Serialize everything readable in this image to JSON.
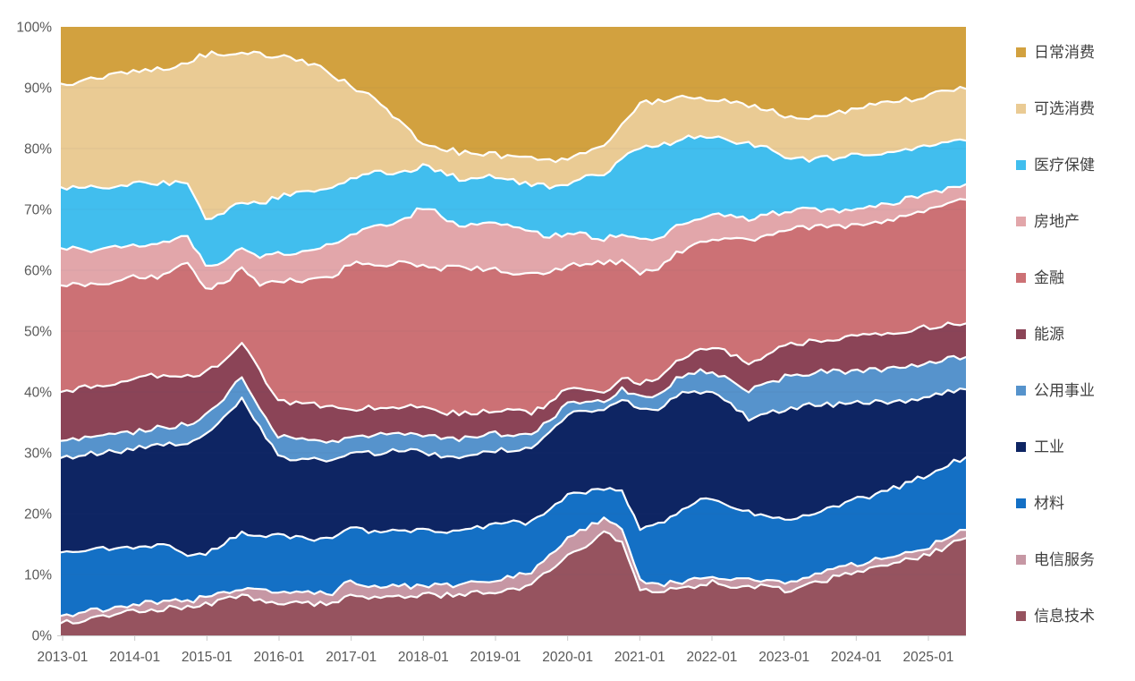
{
  "chart_data": {
    "type": "area",
    "stacking": "percent_100_stacked",
    "title": "",
    "xlabel": "",
    "ylabel": "",
    "grid": "faint horizontal gridlines at 10% steps",
    "axis_label_color": "#595959",
    "boundary_stroke_color": "#ffffff",
    "x_axis": {
      "tick_labels": [
        "2013-01",
        "2014-01",
        "2015-01",
        "2016-01",
        "2017-01",
        "2018-01",
        "2019-01",
        "2020-01",
        "2021-01",
        "2022-01",
        "2023-01",
        "2024-01",
        "2025-01"
      ],
      "frequency": "monthly (values sampled quarterly below)"
    },
    "y_axis": {
      "tick_labels": [
        "0%",
        "10%",
        "20%",
        "30%",
        "40%",
        "50%",
        "60%",
        "70%",
        "80%",
        "90%",
        "100%"
      ],
      "min": 0,
      "max": 100
    },
    "legend": {
      "position": "right",
      "order_top_to_bottom": [
        "日常消费",
        "可选消费",
        "医疗保健",
        "房地产",
        "金融",
        "能源",
        "公用事业",
        "工业",
        "材料",
        "电信服务",
        "信息技术"
      ]
    },
    "x": [
      "2013-01",
      "2013-04",
      "2013-07",
      "2013-10",
      "2014-01",
      "2014-04",
      "2014-07",
      "2014-10",
      "2015-01",
      "2015-04",
      "2015-07",
      "2015-10",
      "2016-01",
      "2016-04",
      "2016-07",
      "2016-10",
      "2017-01",
      "2017-04",
      "2017-07",
      "2017-10",
      "2018-01",
      "2018-04",
      "2018-07",
      "2018-10",
      "2019-01",
      "2019-04",
      "2019-07",
      "2019-10",
      "2020-01",
      "2020-04",
      "2020-07",
      "2020-10",
      "2021-01",
      "2021-04",
      "2021-07",
      "2021-10",
      "2022-01",
      "2022-04",
      "2022-07",
      "2022-10",
      "2023-01",
      "2023-04",
      "2023-07",
      "2023-10",
      "2024-01",
      "2024-04",
      "2024-07",
      "2024-10",
      "2025-01",
      "2025-04",
      "2025-07"
    ],
    "series_bottom_to_top": [
      {
        "id": "info-tech",
        "name": "信息技术",
        "color": "#96535F",
        "values": [
          2.0,
          2.4,
          2.9,
          3.3,
          4.0,
          4.2,
          4.4,
          4.6,
          5.1,
          5.6,
          6.3,
          5.8,
          5.5,
          5.3,
          5.2,
          5.1,
          6.9,
          6.2,
          5.8,
          6.2,
          6.6,
          6.4,
          6.7,
          6.9,
          7.1,
          7.6,
          8.3,
          10.5,
          13.7,
          15.0,
          17.4,
          15.5,
          7.6,
          7.0,
          7.4,
          8.2,
          8.8,
          8.2,
          8.1,
          7.5,
          7.2,
          7.8,
          8.6,
          9.4,
          10.3,
          10.8,
          11.5,
          12.4,
          13.2,
          14.8,
          16.5
        ]
      },
      {
        "id": "telecom",
        "name": "电信服务",
        "color": "#C697A4",
        "values": [
          1.2,
          1.3,
          1.3,
          1.2,
          1.1,
          1.1,
          1.1,
          1.1,
          1.1,
          1.2,
          1.3,
          1.5,
          1.7,
          1.8,
          1.9,
          1.9,
          1.9,
          1.9,
          1.8,
          1.6,
          1.5,
          1.5,
          1.5,
          1.6,
          1.8,
          1.9,
          2.2,
          2.4,
          2.6,
          2.6,
          2.2,
          1.8,
          1.3,
          1.2,
          1.2,
          1.2,
          1.2,
          1.2,
          1.2,
          1.2,
          1.2,
          1.2,
          1.2,
          1.2,
          1.2,
          1.2,
          1.3,
          1.3,
          1.3,
          1.4,
          1.4
        ]
      },
      {
        "id": "materials",
        "name": "材料",
        "color": "#1470C5",
        "values": [
          10.4,
          10.2,
          10.0,
          9.8,
          9.6,
          9.4,
          9.0,
          7.8,
          7.0,
          7.8,
          9.0,
          9.2,
          9.4,
          9.2,
          9.0,
          8.8,
          8.5,
          8.6,
          8.7,
          8.8,
          8.8,
          8.5,
          8.2,
          8.9,
          9.6,
          8.8,
          8.0,
          7.5,
          7.2,
          6.0,
          4.5,
          6.5,
          8.0,
          9.5,
          11.0,
          12.5,
          13.0,
          12.0,
          10.3,
          10.0,
          10.3,
          10.1,
          10.0,
          10.1,
          10.3,
          10.5,
          10.8,
          11.2,
          11.8,
          12.1,
          12.3
        ]
      },
      {
        "id": "industrials",
        "name": "工业",
        "color": "#0E2563",
        "values": [
          15.5,
          15.6,
          15.8,
          16.0,
          16.0,
          16.2,
          16.5,
          19.0,
          19.5,
          20.5,
          21.5,
          17.5,
          13.5,
          13.2,
          13.0,
          12.6,
          12.1,
          12.4,
          12.6,
          12.8,
          12.8,
          12.5,
          12.2,
          12.0,
          11.8,
          12.0,
          12.4,
          12.6,
          12.9,
          13.5,
          13.0,
          15.5,
          19.0,
          18.0,
          19.5,
          18.5,
          17.5,
          16.5,
          15.1,
          16.0,
          17.6,
          17.2,
          16.8,
          16.0,
          15.4,
          14.8,
          14.0,
          13.2,
          12.5,
          12.0,
          11.5
        ]
      },
      {
        "id": "utilities",
        "name": "公用事业",
        "color": "#5693CC",
        "values": [
          2.8,
          2.8,
          2.8,
          2.8,
          2.9,
          2.9,
          3.0,
          3.0,
          3.1,
          3.2,
          3.4,
          3.4,
          3.4,
          3.3,
          3.2,
          3.1,
          2.9,
          2.9,
          2.8,
          2.8,
          2.9,
          2.8,
          2.7,
          2.6,
          2.6,
          2.4,
          2.2,
          2.0,
          1.8,
          1.6,
          1.5,
          1.8,
          2.2,
          2.6,
          2.8,
          3.2,
          3.6,
          4.0,
          4.5,
          4.8,
          5.1,
          5.1,
          5.2,
          5.2,
          5.1,
          5.2,
          5.3,
          5.4,
          5.4,
          5.5,
          5.5
        ]
      },
      {
        "id": "energy",
        "name": "能源",
        "color": "#8B4457",
        "values": [
          8.0,
          8.2,
          8.4,
          8.5,
          8.6,
          8.6,
          8.4,
          7.8,
          7.0,
          6.2,
          5.5,
          5.8,
          6.1,
          6.0,
          5.9,
          5.7,
          4.4,
          4.3,
          4.2,
          4.3,
          4.4,
          4.3,
          4.2,
          4.1,
          4.0,
          3.7,
          3.4,
          2.9,
          2.5,
          1.7,
          1.5,
          1.8,
          2.2,
          2.5,
          2.8,
          3.4,
          3.8,
          4.2,
          4.5,
          4.7,
          5.1,
          5.0,
          4.9,
          5.2,
          5.9,
          5.8,
          5.8,
          5.9,
          5.9,
          5.8,
          5.7
        ]
      },
      {
        "id": "financials",
        "name": "金融",
        "color": "#CC7175",
        "values": [
          17.5,
          17.0,
          16.5,
          16.8,
          16.8,
          16.0,
          16.5,
          19.5,
          13.5,
          12.5,
          11.5,
          14.5,
          19.9,
          20.5,
          21.0,
          21.5,
          23.5,
          23.0,
          22.5,
          22.8,
          22.8,
          23.0,
          23.5,
          23.2,
          23.1,
          22.5,
          22.8,
          21.5,
          20.1,
          21.5,
          21.6,
          19.5,
          17.6,
          18.0,
          17.5,
          17.8,
          18.5,
          19.0,
          19.5,
          18.8,
          18.5,
          18.2,
          18.0,
          17.8,
          17.6,
          17.8,
          18.2,
          18.8,
          19.0,
          20.0,
          21.0
        ]
      },
      {
        "id": "real-estate",
        "name": "房地产",
        "color": "#E2A6AA",
        "values": [
          6.1,
          5.9,
          5.7,
          5.5,
          5.4,
          5.2,
          4.9,
          4.4,
          4.0,
          3.7,
          3.6,
          4.2,
          4.6,
          4.8,
          4.9,
          5.0,
          5.1,
          5.6,
          6.2,
          7.0,
          9.7,
          8.8,
          6.3,
          7.5,
          7.6,
          7.2,
          6.6,
          5.9,
          5.4,
          4.4,
          4.0,
          4.6,
          5.0,
          4.8,
          4.5,
          4.1,
          3.9,
          3.7,
          3.5,
          3.1,
          2.9,
          2.8,
          2.7,
          2.7,
          2.6,
          2.6,
          2.6,
          2.6,
          2.6,
          2.6,
          2.6
        ]
      },
      {
        "id": "healthcare",
        "name": "医疗保健",
        "color": "#41BEEE",
        "values": [
          10.0,
          10.2,
          10.4,
          10.3,
          10.3,
          10.1,
          9.8,
          8.6,
          7.8,
          7.6,
          7.4,
          9.0,
          9.6,
          9.6,
          9.5,
          9.4,
          9.1,
          8.8,
          8.4,
          7.6,
          6.6,
          7.0,
          7.6,
          7.2,
          7.4,
          7.8,
          8.2,
          8.0,
          8.1,
          9.5,
          10.5,
          12.5,
          15.0,
          14.5,
          14.0,
          13.5,
          12.8,
          12.2,
          12.0,
          10.5,
          8.2,
          8.1,
          8.0,
          8.4,
          8.8,
          8.5,
          8.2,
          7.9,
          7.8,
          7.6,
          7.4
        ]
      },
      {
        "id": "cons-discretionary",
        "name": "可选消费",
        "color": "#EACB94",
        "values": [
          17.0,
          17.4,
          17.8,
          18.1,
          18.2,
          18.5,
          18.8,
          20.5,
          26.8,
          26.0,
          23.5,
          24.5,
          23.5,
          22.5,
          21.0,
          18.5,
          14.7,
          12.5,
          10.0,
          7.0,
          3.5,
          3.8,
          4.2,
          4.0,
          3.5,
          3.8,
          4.2,
          4.3,
          4.3,
          4.0,
          4.5,
          5.5,
          7.0,
          7.2,
          6.8,
          6.6,
          6.5,
          6.4,
          6.2,
          6.3,
          6.7,
          6.6,
          6.8,
          7.0,
          7.4,
          7.6,
          7.9,
          8.1,
          8.2,
          8.5,
          8.8
        ]
      },
      {
        "id": "cons-staples",
        "name": "日常消费",
        "color": "#D2A13F",
        "values": [
          9.3,
          9.0,
          8.6,
          8.0,
          7.5,
          7.2,
          6.6,
          5.8,
          4.5,
          4.3,
          4.2,
          4.6,
          5.0,
          5.5,
          6.2,
          7.8,
          9.6,
          11.0,
          13.0,
          16.0,
          19.1,
          19.5,
          20.0,
          20.5,
          20.9,
          21.2,
          21.5,
          21.7,
          21.8,
          21.0,
          20.0,
          16.5,
          12.2,
          12.0,
          11.8,
          11.5,
          12.0,
          12.2,
          12.5,
          12.8,
          14.7,
          14.4,
          14.1,
          13.7,
          12.9,
          12.5,
          12.2,
          11.7,
          11.0,
          10.7,
          10.5
        ]
      }
    ]
  }
}
